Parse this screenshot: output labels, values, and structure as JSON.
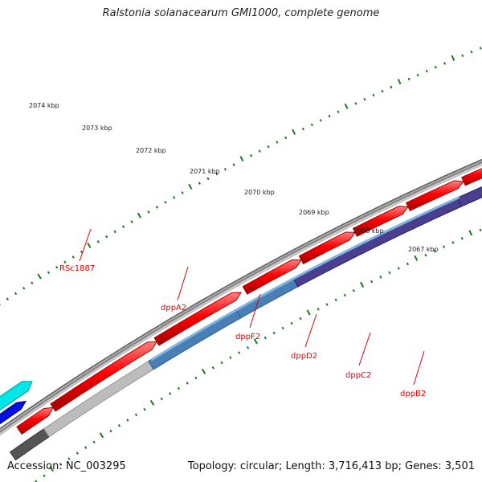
{
  "title": "Ralstonia solanacearum GMI1000, complete genome",
  "accession": "Accession: NC_003295",
  "topology": "Topology: circular; Length: 3,716,413 bp; Genes: 3,501",
  "scale_labels": [
    "2074 kbp",
    "2073 kbp",
    "2072 kbp",
    "2071 kbp",
    "2070 kbp",
    "2069 kbp",
    "2068 kbp",
    "2067 kbp"
  ],
  "gene_labels": [
    "RSc1887",
    "dppA2",
    "dppF2",
    "dppD2",
    "dppC2",
    "dppB2"
  ],
  "colors": {
    "forward_cds": "#ee0000",
    "cyan_feature": "#00e5e5",
    "blue_feature": "#0010dd",
    "backbone": "#8a8a8a",
    "tick": "#1a7a1a",
    "gray_feature": "#bcbcbc",
    "steelblue_feature": "#4a7fb5",
    "slate_feature": "#4a3f8f",
    "label": "#e00000"
  }
}
